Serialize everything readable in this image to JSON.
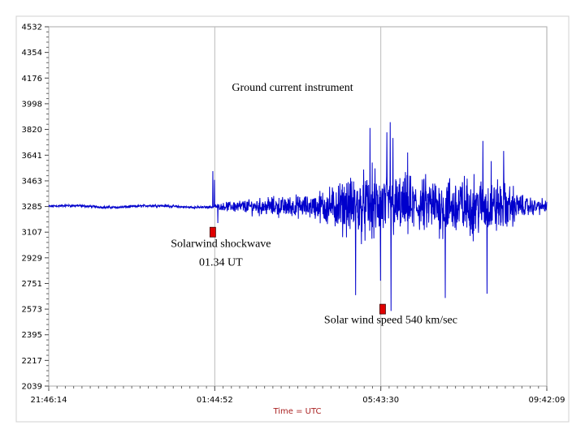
{
  "chart_data": {
    "type": "line",
    "title": "Ground current instrument",
    "xlabel": "Time = UTC",
    "ylabel": "",
    "y_ticks": [
      2039,
      2217,
      2395,
      2573,
      2751,
      2929,
      3107,
      3285,
      3463,
      3641,
      3820,
      3998,
      4176,
      4354,
      4532
    ],
    "ylim": [
      2039,
      4532
    ],
    "x_ticks": [
      "21:46:14",
      "01:44:52",
      "05:43:30",
      "09:42:09"
    ],
    "x_range_hours": [
      0,
      11.933
    ],
    "grid": true,
    "series": [
      {
        "color": "#0000cc",
        "baseline": 3285,
        "envelope": [
          {
            "t": 0.0,
            "amp": 12
          },
          {
            "t": 3.95,
            "amp": 12
          },
          {
            "t": 4.0,
            "amp": 20
          },
          {
            "t": 4.5,
            "amp": 60
          },
          {
            "t": 5.5,
            "amp": 90
          },
          {
            "t": 6.3,
            "amp": 110
          },
          {
            "t": 6.8,
            "amp": 200
          },
          {
            "t": 7.3,
            "amp": 260
          },
          {
            "t": 7.8,
            "amp": 330
          },
          {
            "t": 8.2,
            "amp": 280
          },
          {
            "t": 8.8,
            "amp": 260
          },
          {
            "t": 9.8,
            "amp": 280
          },
          {
            "t": 10.9,
            "amp": 240
          },
          {
            "t": 11.4,
            "amp": 90
          },
          {
            "t": 11.93,
            "amp": 60
          }
        ],
        "spikes": [
          {
            "t": 3.93,
            "v": 3530
          },
          {
            "t": 3.97,
            "v": 3470
          },
          {
            "t": 4.05,
            "v": 3170
          },
          {
            "t": 7.35,
            "v": 2670
          },
          {
            "t": 7.7,
            "v": 3830
          },
          {
            "t": 7.95,
            "v": 2770
          },
          {
            "t": 8.1,
            "v": 3800
          },
          {
            "t": 8.18,
            "v": 3870
          },
          {
            "t": 8.2,
            "v": 2560
          },
          {
            "t": 8.25,
            "v": 3760
          },
          {
            "t": 8.6,
            "v": 3660
          },
          {
            "t": 9.5,
            "v": 2650
          },
          {
            "t": 10.4,
            "v": 3740
          },
          {
            "t": 10.5,
            "v": 2680
          },
          {
            "t": 10.6,
            "v": 3600
          },
          {
            "t": 10.9,
            "v": 3670
          }
        ]
      }
    ],
    "annotations": [
      {
        "text": "Solarwind shockwave",
        "t": 3.93,
        "v": 3005
      },
      {
        "text": "01.34 UT",
        "t": 3.93,
        "v": 2875
      },
      {
        "text": "Solar wind speed 540 km/sec",
        "t": 8.0,
        "v": 2475
      }
    ],
    "markers": [
      {
        "t": 3.93,
        "v": 3107
      },
      {
        "t": 8.0,
        "v": 2573
      }
    ],
    "marker_color": "#e00000"
  }
}
